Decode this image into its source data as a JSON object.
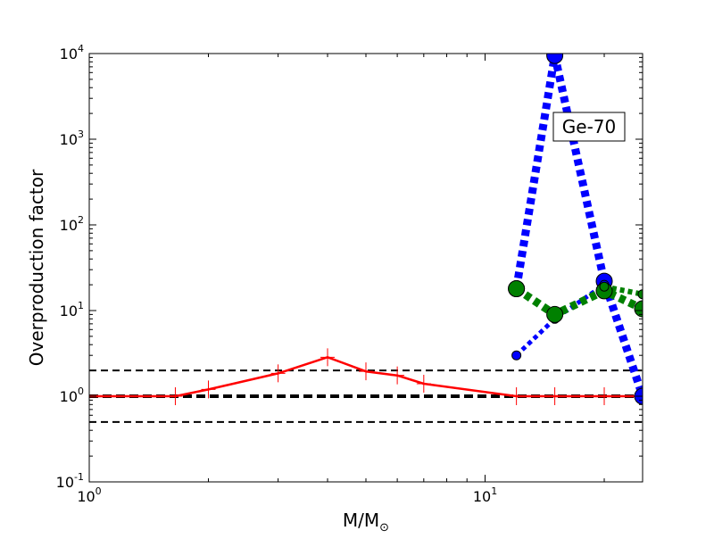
{
  "chart_data": {
    "type": "line",
    "title": "",
    "xlabel": "M/M",
    "xlabel_subscript": "⊙",
    "ylabel": "Overproduction factor",
    "xscale": "log",
    "yscale": "log",
    "xlim": [
      1,
      25
    ],
    "ylim": [
      0.1,
      10000
    ],
    "x_ticks": [
      {
        "value": 1,
        "base": "10",
        "exp": "0"
      },
      {
        "value": 10,
        "base": "10",
        "exp": "1"
      }
    ],
    "y_ticks": [
      {
        "value": 0.1,
        "base": "10",
        "exp": "-1"
      },
      {
        "value": 1,
        "base": "10",
        "exp": "0"
      },
      {
        "value": 10,
        "base": "10",
        "exp": "1"
      },
      {
        "value": 100,
        "base": "10",
        "exp": "2"
      },
      {
        "value": 1000,
        "base": "10",
        "exp": "3"
      },
      {
        "value": 10000,
        "base": "10",
        "exp": "4"
      }
    ],
    "annotation": "Ge-70",
    "reference_lines": [
      {
        "y": 2,
        "color": "#000000",
        "style": "dashed",
        "width": "thin"
      },
      {
        "y": 1,
        "color": "#000000",
        "style": "dashed",
        "width": "thick"
      },
      {
        "y": 0.5,
        "color": "#000000",
        "style": "dashed",
        "width": "thin"
      }
    ],
    "series": [
      {
        "color": "#ff0000",
        "style": "solid",
        "marker": "plus",
        "x": [
          1,
          1.65,
          2,
          3,
          4,
          5,
          6,
          7,
          12,
          15,
          20,
          25
        ],
        "y": [
          1.0,
          1.0,
          1.2,
          1.85,
          2.85,
          1.95,
          1.75,
          1.4,
          1.0,
          1.0,
          1.0,
          1.0
        ]
      },
      {
        "color": "#0000ff",
        "style": "dotted-thick",
        "marker": "circle-large",
        "x": [
          12,
          15,
          20,
          25
        ],
        "y": [
          18,
          9500,
          22,
          1.0
        ]
      },
      {
        "color": "#0000ff",
        "style": "dotted-thin",
        "marker": "circle-small",
        "x": [
          12,
          15,
          20
        ],
        "y": [
          3.0,
          8.0,
          20
        ]
      },
      {
        "color": "#008000",
        "style": "dotted-thick",
        "marker": "circle-large",
        "x": [
          12,
          15,
          20,
          25
        ],
        "y": [
          18,
          9,
          17,
          10.5
        ]
      },
      {
        "color": "#008000",
        "style": "dotted-medium",
        "marker": "circle-small",
        "x": [
          20,
          25
        ],
        "y": [
          19,
          15.5
        ]
      }
    ]
  }
}
